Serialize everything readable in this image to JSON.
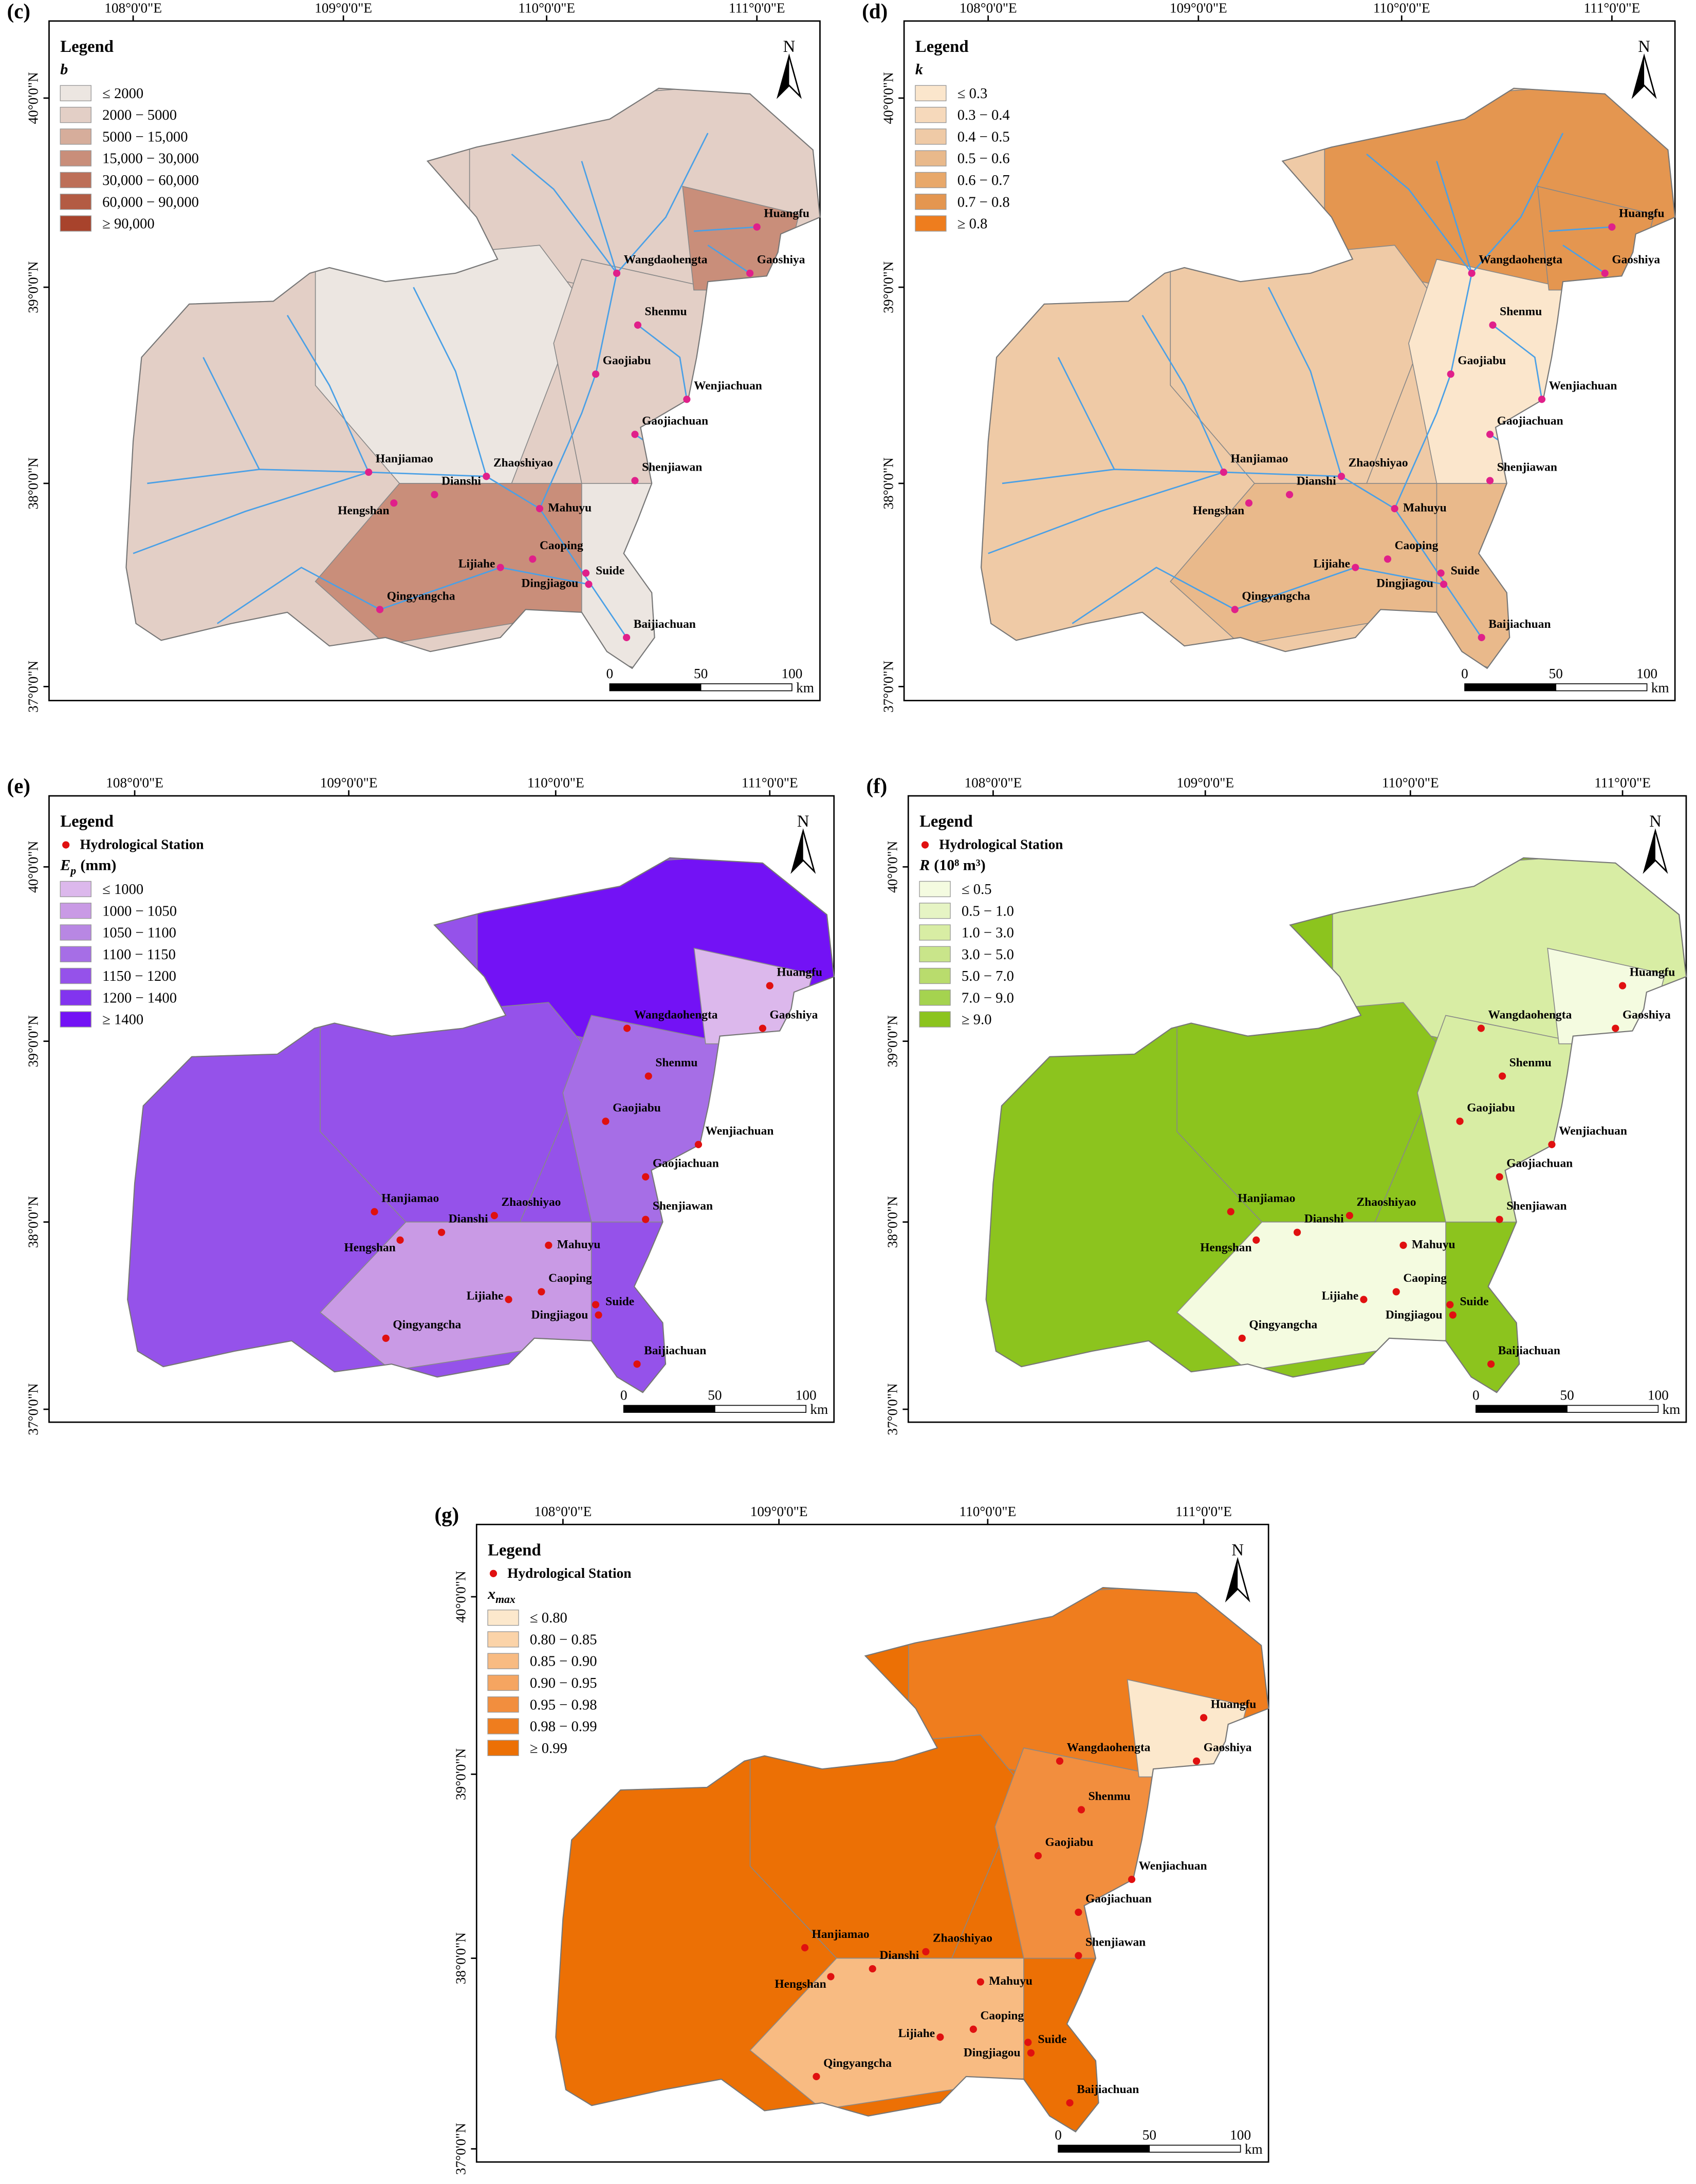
{
  "lon_ticks": [
    "108°0'0\"E",
    "109°0'0\"E",
    "110°0'0\"E",
    "111°0'0\"E"
  ],
  "lat_ticks": [
    "40°0'0\"N",
    "39°0'0\"N",
    "38°0'0\"N",
    "37°0'0\"N"
  ],
  "scale_ticks": [
    "0",
    "50",
    "100"
  ],
  "scale_unit": "km",
  "north": "N",
  "stations": [
    "Huangfu",
    "Gaoshiya",
    "Wangdaohengta",
    "Shenmu",
    "Gaojiabu",
    "Wenjiachuan",
    "Gaojiachuan",
    "Shenjiawan",
    "Hanjiamao",
    "Hengshan",
    "Zhaoshiyao",
    "Dianshi",
    "Mahuyu",
    "Caoping",
    "Lijiahe",
    "Suide",
    "Dingjiagou",
    "Qingyangcha",
    "Baijiachuan"
  ],
  "panels": [
    {
      "label": "(c)",
      "legend_title": "Legend",
      "variable": {
        "symbol": "b"
      },
      "station_color": "#e0208a",
      "rivers": true,
      "classes": [
        {
          "label": "≤ 2000",
          "color": "#ece6e1"
        },
        {
          "label": "2000 − 5000",
          "color": "#e3cfc6"
        },
        {
          "label": "5000 − 15,000",
          "color": "#d6ad9b"
        },
        {
          "label": "15,000 − 30,000",
          "color": "#c98e7a"
        },
        {
          "label": "30,000 − 60,000",
          "color": "#bd6f58"
        },
        {
          "label": "60,000 − 90,000",
          "color": "#b35b43"
        },
        {
          "label": "≥ 90,000",
          "color": "#a8432c"
        }
      ]
    },
    {
      "label": "(d)",
      "legend_title": "Legend",
      "variable": {
        "symbol": "k"
      },
      "station_color": "#e0208a",
      "rivers": true,
      "classes": [
        {
          "label": "≤ 0.3",
          "color": "#fbe6cc"
        },
        {
          "label": "0.3 − 0.4",
          "color": "#f6d9bb"
        },
        {
          "label": "0.4 − 0.5",
          "color": "#efcaa6"
        },
        {
          "label": "0.5 − 0.6",
          "color": "#e9b98b"
        },
        {
          "label": "0.6 − 0.7",
          "color": "#e8a86a"
        },
        {
          "label": "0.7 − 0.8",
          "color": "#e49650"
        },
        {
          "label": "≥ 0.8",
          "color": "#ee7d1e"
        }
      ]
    },
    {
      "label": "(e)",
      "legend_title": "Legend",
      "station_legend": "Hydrological Station",
      "variable": {
        "symbol": "E",
        "subscript": "p",
        "unit": "(mm)"
      },
      "station_color": "#e01010",
      "rivers": false,
      "classes": [
        {
          "label": "≤ 1000",
          "color": "#dcb8ec"
        },
        {
          "label": "1000 − 1050",
          "color": "#c99ae5"
        },
        {
          "label": "1050 − 1100",
          "color": "#b887e3"
        },
        {
          "label": "1100 − 1150",
          "color": "#a66ee6"
        },
        {
          "label": "1150 − 1200",
          "color": "#9552ea"
        },
        {
          "label": "1200 − 1400",
          "color": "#8234ef"
        },
        {
          "label": "≥ 1400",
          "color": "#7312f5"
        }
      ]
    },
    {
      "label": "(f)",
      "legend_title": "Legend",
      "station_legend": "Hydrological Station",
      "variable": {
        "symbol": "R",
        "unit": "(10⁸ m³)"
      },
      "station_color": "#e01010",
      "rivers": false,
      "classes": [
        {
          "label": "≤ 0.5",
          "color": "#f4fbe0"
        },
        {
          "label": "0.5 − 1.0",
          "color": "#e6f4c4"
        },
        {
          "label": "1.0 − 3.0",
          "color": "#d8eda4"
        },
        {
          "label": "3.0 − 5.0",
          "color": "#c9e58a"
        },
        {
          "label": "5.0 − 7.0",
          "color": "#b9dc6d"
        },
        {
          "label": "7.0 − 9.0",
          "color": "#a5d34f"
        },
        {
          "label": "≥ 9.0",
          "color": "#8cc41e"
        }
      ]
    },
    {
      "label": "(g)",
      "legend_title": "Legend",
      "station_legend": "Hydrological Station",
      "variable": {
        "symbol": "x",
        "subscript": "max"
      },
      "station_color": "#e01010",
      "rivers": false,
      "classes": [
        {
          "label": "≤ 0.80",
          "color": "#fce8cc"
        },
        {
          "label": "0.80 − 0.85",
          "color": "#fbd3a8"
        },
        {
          "label": "0.85 − 0.90",
          "color": "#f8bb82"
        },
        {
          "label": "0.90 − 0.95",
          "color": "#f5a561"
        },
        {
          "label": "0.95 − 0.98",
          "color": "#f28e3e"
        },
        {
          "label": "0.98 − 0.99",
          "color": "#ef7d1e"
        },
        {
          "label": "≥ 0.99",
          "color": "#ec7005"
        }
      ]
    }
  ]
}
